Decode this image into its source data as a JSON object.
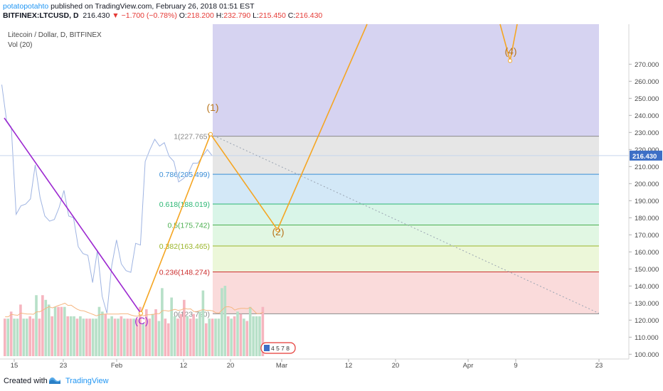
{
  "header": {
    "author": "potatopotahto",
    "published": "published on TradingView.com, February 26, 2018 01:51 EST",
    "symbol": "BITFINEX:LTCUSD, D",
    "last": "216.430",
    "change": "▼ −1.700 (−0.78%)",
    "o_label": "O:",
    "o": "218.200",
    "h_label": "H:",
    "h": "232.790",
    "l_label": "L:",
    "l": "215.450",
    "c_label": "C:",
    "c": "216.430"
  },
  "legend": {
    "title": "Litecoin / Dollar, D, BITFINEX",
    "volume": "Vol (20)"
  },
  "footer": {
    "created": "Created with",
    "brand": "TradingView"
  },
  "colors": {
    "price_line": "#9fb4e2",
    "price_tag": "#3d6fc6",
    "impulse": "#f5a623",
    "correction": "#9c27d0",
    "wave_label": "#b8751e",
    "c_label": "#9c27d0",
    "vol_up": "#b7e0c8",
    "vol_down": "#f6b5bf",
    "vol_ma": "#f5b681"
  },
  "chart_data": {
    "type": "line",
    "title": "Litecoin / Dollar, D, BITFINEX",
    "xlabel": "",
    "ylabel": "",
    "ylim": [
      95,
      280
    ],
    "x_ticks": [
      "15",
      "23",
      "Feb",
      "12",
      "20",
      "Mar",
      "12",
      "20",
      "Apr",
      "9",
      "23"
    ],
    "y_ticks": [
      "100.000",
      "110.000",
      "120.000",
      "130.000",
      "140.000",
      "150.000",
      "160.000",
      "170.000",
      "180.000",
      "190.000",
      "200.000",
      "210.000",
      "220.000",
      "230.000",
      "240.000",
      "250.000",
      "260.000",
      "270.000"
    ],
    "last_price": 216.43,
    "last_price_label": "216.430",
    "series": [
      {
        "name": "LTCUSD",
        "x": [
          "Jan 13",
          "Jan 14",
          "Jan 15",
          "Jan 16",
          "Jan 17",
          "Jan 18",
          "Jan 19",
          "Jan 20",
          "Jan 21",
          "Jan 22",
          "Jan 23",
          "Jan 24",
          "Jan 25",
          "Jan 26",
          "Jan 27",
          "Jan 28",
          "Jan 29",
          "Jan 30",
          "Jan 31",
          "Feb 1",
          "Feb 2",
          "Feb 3",
          "Feb 4",
          "Feb 5",
          "Feb 6",
          "Feb 7",
          "Feb 8",
          "Feb 9",
          "Feb 10",
          "Feb 11",
          "Feb 12",
          "Feb 13",
          "Feb 14",
          "Feb 15",
          "Feb 16",
          "Feb 17",
          "Feb 18",
          "Feb 19",
          "Feb 20",
          "Feb 21",
          "Feb 22",
          "Feb 23",
          "Feb 24",
          "Feb 25",
          "Feb 26"
        ],
        "values": [
          258,
          237,
          233,
          182,
          187,
          188,
          191,
          211,
          192,
          181,
          178,
          179,
          186,
          196,
          181,
          180,
          163,
          159,
          158,
          142,
          161,
          134,
          124,
          152,
          167,
          153,
          149,
          148,
          165,
          164,
          213,
          220,
          226,
          222,
          224,
          216,
          213,
          201,
          203,
          206,
          212,
          212,
          216,
          220,
          216.43
        ]
      }
    ],
    "volume": {
      "name": "Vol (20)",
      "values": [
        16,
        16,
        19,
        16,
        16,
        22,
        16,
        16,
        17,
        16,
        26,
        16,
        26,
        24,
        22,
        17,
        21,
        21,
        21,
        21,
        17,
        17,
        17,
        16,
        17,
        16,
        16,
        16,
        16,
        16,
        21,
        19,
        18,
        16,
        17,
        16,
        16,
        17,
        16,
        16,
        16,
        16,
        16,
        21,
        14,
        20,
        16,
        18,
        20,
        15,
        29,
        16,
        14,
        25,
        17,
        16,
        18,
        24,
        17,
        16,
        18,
        16,
        19,
        28,
        14,
        16,
        16,
        16,
        16,
        29,
        30,
        17,
        16,
        17,
        19,
        18,
        16,
        15,
        21,
        17,
        17,
        17,
        21
      ],
      "direction": [
        "d",
        "u",
        "d",
        "u",
        "u",
        "d",
        "u",
        "u",
        "d",
        "d",
        "u",
        "d",
        "d",
        "u",
        "u",
        "d",
        "u",
        "d",
        "d",
        "u",
        "d",
        "u",
        "u",
        "d",
        "u",
        "u",
        "d",
        "d",
        "u",
        "u",
        "u",
        "u",
        "d",
        "u",
        "u",
        "d",
        "u",
        "d",
        "u",
        "d",
        "d",
        "u",
        "d",
        "d",
        "u",
        "d",
        "d",
        "u",
        "d",
        "u",
        "u",
        "d",
        "d",
        "u",
        "u",
        "d",
        "d",
        "d",
        "u",
        "d",
        "d",
        "u",
        "u",
        "u",
        "d",
        "u",
        "d",
        "u",
        "u",
        "u",
        "u",
        "d",
        "u",
        "d",
        "u",
        "d",
        "u",
        "d",
        "u",
        "u",
        "u",
        "u",
        "d"
      ]
    },
    "fibonacci": [
      {
        "label": "1(227.765)",
        "value": 227.765,
        "color": "#8a8a8a",
        "fill": "rgba(200,200,200,0.45)"
      },
      {
        "label": "0.786(205.499)",
        "value": 205.499,
        "color": "#3a8ed6",
        "fill": "rgba(168,210,240,0.5)"
      },
      {
        "label": "0.618(188.019)",
        "value": 188.019,
        "color": "#2bb673",
        "fill": "rgba(180,235,210,0.5)"
      },
      {
        "label": "0.5(175.742)",
        "value": 175.742,
        "color": "#4caf50",
        "fill": "rgba(195,240,200,0.5)"
      },
      {
        "label": "0.382(163.465)",
        "value": 163.465,
        "color": "#9ab52a",
        "fill": "rgba(220,240,185,0.55)"
      },
      {
        "label": "0.236(148.274)",
        "value": 148.274,
        "color": "#cc2e2e",
        "fill": "rgba(245,190,190,0.55)"
      },
      {
        "label": "0(123.720)",
        "value": 123.72,
        "color": "#8a8a8a",
        "fill": ""
      }
    ],
    "waves": [
      {
        "label": "(C)",
        "value": 124
      },
      {
        "label": "(1)",
        "value": 229
      },
      {
        "label": "(2)",
        "value": 173
      },
      {
        "label": "(4)",
        "value": 272
      }
    ],
    "events_badge": "4 5 7 8"
  }
}
